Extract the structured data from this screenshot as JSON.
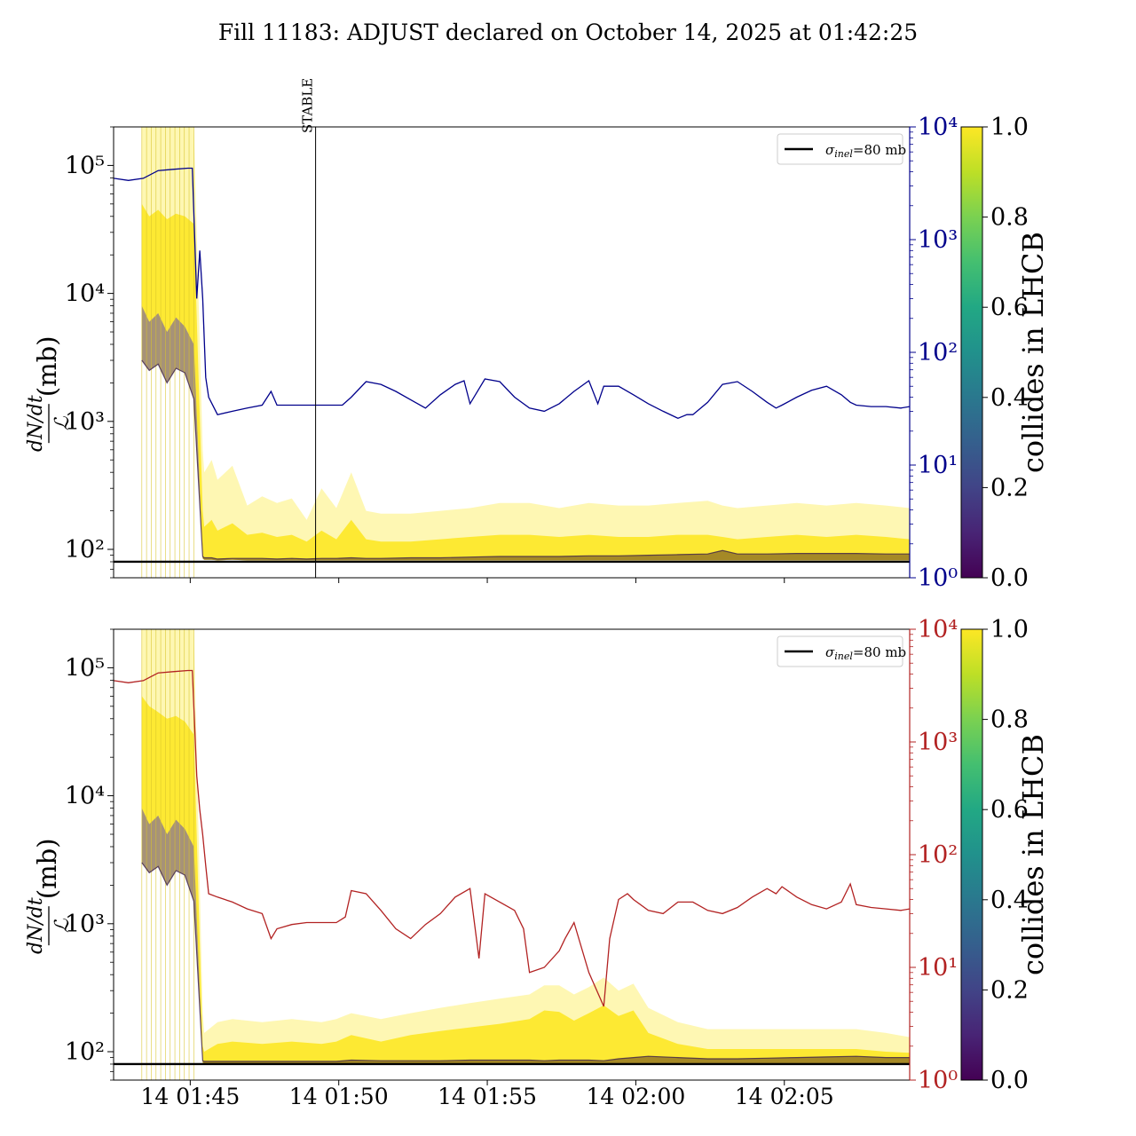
{
  "title": "Fill 11183: ADJUST declared on October 14, 2025 at 01:42:25",
  "colors": {
    "top_line": "#00008b",
    "bottom_line": "#b22222",
    "ref_line": "#000000",
    "band_yellow": "#fde725",
    "band_dark": "#440154"
  },
  "chart_data": [
    {
      "type": "line",
      "panel": "top",
      "ylabel_num": "dN/dt",
      "ylabel_den": "ℒ",
      "ylabel_unit": "(mb)",
      "y_scale": "log",
      "ylim": [
        60,
        200000
      ],
      "y_ticks": [
        100,
        1000,
        10000,
        100000
      ],
      "y_tick_labels": [
        "10²",
        "10³",
        "10⁴",
        "10⁵"
      ],
      "y2_scale": "log",
      "y2lim": [
        1,
        10000
      ],
      "y2_ticks": [
        1,
        10,
        100,
        1000,
        10000
      ],
      "y2_tick_labels": [
        "10⁰",
        "10¹",
        "10²",
        "10³",
        "10⁴"
      ],
      "x_unit": "minutes after 14 01:42:25",
      "xlim": [
        0,
        26.8
      ],
      "x_ticks": [
        2.58,
        7.58,
        12.58,
        17.58,
        22.58
      ],
      "x_tick_labels": [],
      "vline": {
        "x": 6.8,
        "label": "STABLE"
      },
      "legend": {
        "label_main": "σ",
        "label_sub": "inel",
        "label_rest": "=80 mb",
        "loc": "upper right"
      },
      "ref_value": 80,
      "right_series": {
        "name": "",
        "x": [
          0,
          0.5,
          1.0,
          1.5,
          2.0,
          2.5,
          2.65,
          2.8,
          2.9,
          3.0,
          3.1,
          3.2,
          3.5,
          4.0,
          4.5,
          5.0,
          5.3,
          5.5,
          6.0,
          7.0,
          7.7,
          8.0,
          8.5,
          9.0,
          9.5,
          10.0,
          10.5,
          11.0,
          11.5,
          11.8,
          12.0,
          12.5,
          13.0,
          13.5,
          14.0,
          14.5,
          15.0,
          15.5,
          16.0,
          16.3,
          16.5,
          17.0,
          17.5,
          18.0,
          18.5,
          19.0,
          19.3,
          19.5,
          20.0,
          20.5,
          21.0,
          21.5,
          22.0,
          22.3,
          22.5,
          23.0,
          23.5,
          24.0,
          24.5,
          24.8,
          25.0,
          25.5,
          26.0,
          26.5,
          26.8
        ],
        "values": [
          3500,
          3350,
          3500,
          4100,
          4200,
          4300,
          4300,
          300,
          800,
          300,
          60,
          40,
          28,
          30,
          32,
          34,
          45,
          34,
          34,
          34,
          34,
          40,
          55,
          52,
          45,
          38,
          32,
          42,
          52,
          56,
          35,
          58,
          55,
          40,
          32,
          30,
          35,
          45,
          56,
          35,
          50,
          50,
          42,
          35,
          30,
          26,
          28,
          28,
          36,
          52,
          55,
          45,
          36,
          32,
          34,
          40,
          46,
          50,
          42,
          36,
          34,
          33,
          33,
          32,
          33
        ]
      },
      "band": {
        "name": "collides in LHCB",
        "x": [
          0.95,
          1.2,
          1.5,
          1.8,
          2.1,
          2.4,
          2.7,
          3.0,
          3.05,
          3.3,
          3.5,
          4.0,
          4.5,
          5.0,
          5.5,
          6.0,
          6.5,
          7.0,
          7.5,
          8.0,
          8.5,
          9.0,
          10.0,
          11.0,
          12.0,
          13.0,
          14.0,
          15.0,
          16.0,
          17.0,
          18.0,
          19.0,
          20.0,
          20.5,
          21.0,
          22.0,
          23.0,
          24.0,
          25.0,
          26.0,
          26.8
        ],
        "upper": [
          200000,
          200000,
          200000,
          200000,
          200000,
          200000,
          200000,
          600,
          400,
          500,
          350,
          450,
          220,
          260,
          230,
          250,
          170,
          300,
          210,
          400,
          200,
          190,
          190,
          200,
          210,
          230,
          230,
          210,
          230,
          220,
          220,
          230,
          240,
          220,
          210,
          220,
          230,
          220,
          230,
          220,
          210
        ],
        "core": [
          50000,
          40000,
          45000,
          38000,
          42000,
          40000,
          35000,
          200,
          150,
          170,
          140,
          160,
          130,
          135,
          125,
          130,
          115,
          140,
          120,
          170,
          120,
          115,
          115,
          120,
          125,
          130,
          130,
          125,
          130,
          125,
          125,
          130,
          130,
          125,
          120,
          125,
          130,
          125,
          130,
          125,
          120
        ],
        "lower": [
          8000,
          6000,
          7000,
          5000,
          6500,
          5500,
          4000,
          85,
          83,
          83,
          82,
          83,
          82,
          82,
          82,
          82,
          82,
          82,
          82,
          82,
          82,
          82,
          82,
          82,
          82,
          82,
          82,
          82,
          82,
          82,
          82,
          82,
          82,
          82,
          82,
          82,
          82,
          82,
          82,
          82,
          82
        ],
        "dark": [
          3000,
          2500,
          2800,
          2000,
          2600,
          2400,
          1500,
          88,
          86,
          86,
          84,
          85,
          85,
          85,
          84,
          85,
          84,
          85,
          85,
          86,
          85,
          85,
          86,
          86,
          87,
          88,
          88,
          88,
          89,
          89,
          90,
          91,
          92,
          98,
          92,
          92,
          93,
          93,
          93,
          92,
          92
        ]
      },
      "colorbar": {
        "label": "collides in LHCB",
        "min": 0.0,
        "max": 1.0,
        "ticks": [
          "0.0",
          "0.2",
          "0.4",
          "0.6",
          "0.8",
          "1.0"
        ]
      }
    },
    {
      "type": "line",
      "panel": "bottom",
      "ylabel_num": "dN/dt",
      "ylabel_den": "ℒ",
      "ylabel_unit": "(mb)",
      "y_scale": "log",
      "ylim": [
        60,
        200000
      ],
      "y_ticks": [
        100,
        1000,
        10000,
        100000
      ],
      "y_tick_labels": [
        "10²",
        "10³",
        "10⁴",
        "10⁵"
      ],
      "y2_scale": "log",
      "y2lim": [
        1,
        10000
      ],
      "y2_ticks": [
        1,
        10,
        100,
        1000,
        10000
      ],
      "y2_tick_labels": [
        "10⁰",
        "10¹",
        "10²",
        "10³",
        "10⁴"
      ],
      "x_unit": "minutes after 14 01:42:25",
      "xlim": [
        0,
        26.8
      ],
      "x_ticks": [
        2.58,
        7.58,
        12.58,
        17.58,
        22.58
      ],
      "x_tick_labels": [
        "14 01:45",
        "14 01:50",
        "14 01:55",
        "14 02:00",
        "14 02:05"
      ],
      "legend": {
        "label_main": "σ",
        "label_sub": "inel",
        "label_rest": "=80 mb",
        "loc": "upper right"
      },
      "ref_value": 80,
      "right_series": {
        "name": "",
        "x": [
          0,
          0.5,
          1.0,
          1.5,
          2.0,
          2.5,
          2.65,
          2.8,
          2.9,
          3.0,
          3.1,
          3.2,
          3.5,
          4.0,
          4.5,
          5.0,
          5.3,
          5.5,
          6.0,
          6.5,
          7.0,
          7.5,
          7.8,
          8.0,
          8.5,
          9.0,
          9.5,
          10.0,
          10.5,
          11.0,
          11.5,
          12.0,
          12.3,
          12.5,
          13.0,
          13.5,
          13.8,
          14.0,
          14.5,
          15.0,
          15.2,
          15.5,
          16.0,
          16.5,
          16.7,
          17.0,
          17.3,
          17.5,
          18.0,
          18.5,
          19.0,
          19.5,
          20.0,
          20.5,
          21.0,
          21.5,
          22.0,
          22.3,
          22.5,
          23.0,
          23.5,
          24.0,
          24.5,
          24.8,
          25.0,
          25.5,
          26.0,
          26.5,
          26.8
        ],
        "values": [
          3500,
          3350,
          3500,
          4100,
          4200,
          4300,
          4300,
          500,
          250,
          150,
          80,
          45,
          42,
          38,
          33,
          30,
          18,
          22,
          24,
          25,
          25,
          25,
          28,
          48,
          45,
          32,
          22,
          18,
          24,
          30,
          42,
          50,
          12,
          45,
          38,
          32,
          22,
          9,
          10,
          14,
          18,
          25,
          9,
          4.5,
          18,
          40,
          45,
          40,
          32,
          30,
          38,
          38,
          32,
          30,
          34,
          42,
          50,
          45,
          52,
          42,
          36,
          33,
          38,
          55,
          36,
          34,
          33,
          32,
          33
        ]
      },
      "band": {
        "name": "collides in LHCB",
        "x": [
          0.95,
          1.2,
          1.5,
          1.8,
          2.1,
          2.4,
          2.7,
          3.0,
          3.05,
          3.5,
          4.0,
          5.0,
          6.0,
          7.0,
          7.5,
          8.0,
          9.0,
          10.0,
          11.0,
          12.0,
          13.0,
          14.0,
          14.5,
          15.0,
          15.5,
          16.0,
          16.5,
          17.0,
          17.5,
          18.0,
          19.0,
          20.0,
          21.0,
          22.0,
          23.0,
          24.0,
          25.0,
          26.0,
          26.8
        ],
        "upper": [
          200000,
          200000,
          200000,
          200000,
          200000,
          200000,
          200000,
          200,
          140,
          170,
          180,
          170,
          180,
          170,
          180,
          200,
          180,
          200,
          220,
          240,
          260,
          280,
          330,
          330,
          280,
          320,
          380,
          300,
          340,
          220,
          170,
          150,
          150,
          150,
          150,
          150,
          150,
          140,
          130
        ],
        "core": [
          60000,
          50000,
          45000,
          40000,
          42000,
          38000,
          30000,
          110,
          100,
          115,
          120,
          115,
          120,
          115,
          120,
          135,
          120,
          135,
          145,
          155,
          165,
          180,
          210,
          205,
          175,
          200,
          230,
          190,
          210,
          140,
          115,
          105,
          105,
          105,
          105,
          105,
          105,
          100,
          98
        ],
        "lower": [
          8000,
          6000,
          7000,
          5000,
          6500,
          5500,
          4000,
          82,
          81,
          81,
          81,
          81,
          81,
          81,
          81,
          81,
          81,
          81,
          81,
          81,
          80,
          80,
          80,
          80,
          80,
          80,
          80,
          81,
          81,
          81,
          81,
          81,
          81,
          81,
          81,
          81,
          81,
          81,
          81
        ],
        "dark": [
          3000,
          2500,
          2800,
          2000,
          2600,
          2400,
          1500,
          85,
          84,
          84,
          84,
          84,
          84,
          84,
          84,
          86,
          85,
          85,
          85,
          86,
          86,
          86,
          85,
          86,
          86,
          86,
          85,
          88,
          90,
          92,
          90,
          88,
          88,
          89,
          90,
          91,
          92,
          90,
          90
        ]
      },
      "colorbar": {
        "label": "collides in LHCB",
        "min": 0.0,
        "max": 1.0,
        "ticks": [
          "0.0",
          "0.2",
          "0.4",
          "0.6",
          "0.8",
          "1.0"
        ]
      }
    }
  ]
}
